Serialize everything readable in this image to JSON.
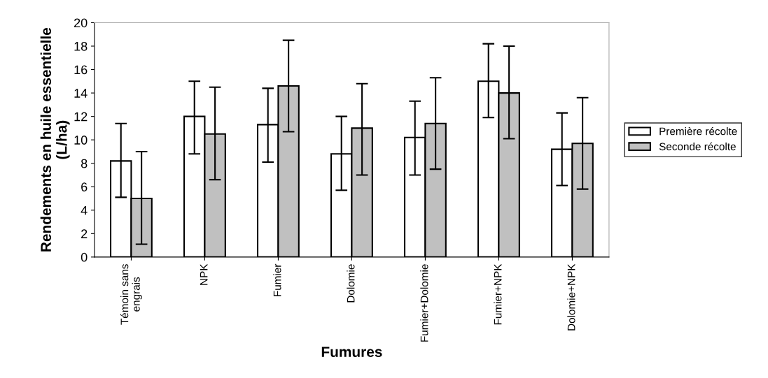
{
  "chart_data": {
    "type": "bar",
    "xlabel": "Fumures",
    "ylabel": "Rendements en huile essentielle\n(L/ha)",
    "categories": [
      "Témoin sans\nengrais",
      "NPK",
      "Fumier",
      "Dolomie",
      "Fumier+Dolomie",
      "Fumier+NPK",
      "Dolomie+NPK"
    ],
    "series": [
      {
        "name": "Première récolte",
        "color": "#ffffff",
        "values": [
          8.2,
          12.0,
          11.3,
          8.8,
          10.2,
          15.0,
          9.2
        ],
        "errors": [
          [
            5.1,
            11.4
          ],
          [
            8.8,
            15.0
          ],
          [
            8.1,
            14.4
          ],
          [
            5.7,
            12.0
          ],
          [
            7.0,
            13.3
          ],
          [
            11.9,
            18.2
          ],
          [
            6.1,
            12.3
          ]
        ]
      },
      {
        "name": "Seconde récolte",
        "color": "#c0c0c0",
        "values": [
          5.0,
          10.5,
          14.6,
          11.0,
          11.4,
          14.0,
          9.7
        ],
        "errors": [
          [
            1.1,
            9.0
          ],
          [
            6.6,
            14.5
          ],
          [
            10.7,
            18.5
          ],
          [
            7.0,
            14.8
          ],
          [
            7.5,
            15.3
          ],
          [
            10.1,
            18.0
          ],
          [
            5.8,
            13.6
          ]
        ]
      }
    ],
    "ylim": [
      0,
      20
    ],
    "yticks": [
      0,
      2,
      4,
      6,
      8,
      10,
      12,
      14,
      16,
      18,
      20
    ],
    "grid": false,
    "legend": "right"
  }
}
